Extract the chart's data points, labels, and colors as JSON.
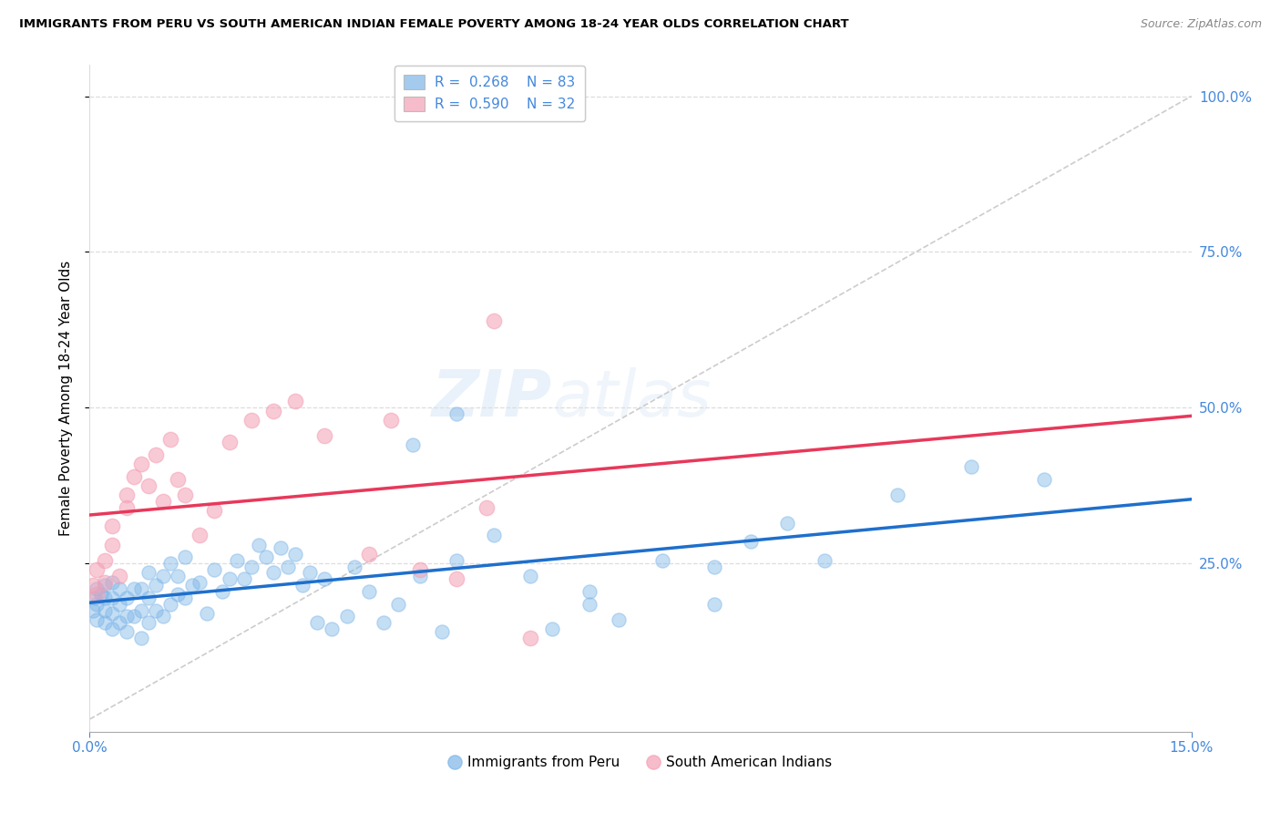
{
  "title": "IMMIGRANTS FROM PERU VS SOUTH AMERICAN INDIAN FEMALE POVERTY AMONG 18-24 YEAR OLDS CORRELATION CHART",
  "source": "Source: ZipAtlas.com",
  "ylabel_label": "Female Poverty Among 18-24 Year Olds",
  "xlim": [
    0.0,
    0.15
  ],
  "ylim": [
    -0.02,
    1.05
  ],
  "ytick_vals": [
    0.25,
    0.5,
    0.75,
    1.0
  ],
  "xtick_vals": [
    0.0,
    0.15
  ],
  "legend_r1": "R = 0.268",
  "legend_n1": "N = 83",
  "legend_r2": "R = 0.590",
  "legend_n2": "N = 32",
  "color_blue": "#7EB6E8",
  "color_pink": "#F4A0B5",
  "color_line_blue": "#1E6FCC",
  "color_line_pink": "#E8385A",
  "color_diag": "#CCCCCC",
  "color_tick": "#4488DD",
  "watermark": "ZIPatlas",
  "blue_x": [
    0.0004,
    0.0007,
    0.001,
    0.001,
    0.001,
    0.0015,
    0.002,
    0.002,
    0.002,
    0.002,
    0.003,
    0.003,
    0.003,
    0.003,
    0.004,
    0.004,
    0.004,
    0.005,
    0.005,
    0.005,
    0.006,
    0.006,
    0.007,
    0.007,
    0.007,
    0.008,
    0.008,
    0.008,
    0.009,
    0.009,
    0.01,
    0.01,
    0.011,
    0.011,
    0.012,
    0.012,
    0.013,
    0.013,
    0.014,
    0.015,
    0.016,
    0.017,
    0.018,
    0.019,
    0.02,
    0.021,
    0.022,
    0.023,
    0.024,
    0.025,
    0.026,
    0.027,
    0.028,
    0.029,
    0.03,
    0.031,
    0.032,
    0.033,
    0.035,
    0.036,
    0.038,
    0.04,
    0.042,
    0.045,
    0.048,
    0.05,
    0.055,
    0.06,
    0.063,
    0.068,
    0.072,
    0.078,
    0.085,
    0.09,
    0.095,
    0.1,
    0.11,
    0.12,
    0.13,
    0.044,
    0.05,
    0.068,
    0.085
  ],
  "blue_y": [
    0.175,
    0.195,
    0.16,
    0.185,
    0.21,
    0.2,
    0.155,
    0.175,
    0.195,
    0.215,
    0.145,
    0.17,
    0.195,
    0.22,
    0.155,
    0.185,
    0.21,
    0.14,
    0.165,
    0.195,
    0.165,
    0.21,
    0.13,
    0.175,
    0.21,
    0.155,
    0.195,
    0.235,
    0.175,
    0.215,
    0.165,
    0.23,
    0.185,
    0.25,
    0.2,
    0.23,
    0.195,
    0.26,
    0.215,
    0.22,
    0.17,
    0.24,
    0.205,
    0.225,
    0.255,
    0.225,
    0.245,
    0.28,
    0.26,
    0.235,
    0.275,
    0.245,
    0.265,
    0.215,
    0.235,
    0.155,
    0.225,
    0.145,
    0.165,
    0.245,
    0.205,
    0.155,
    0.185,
    0.23,
    0.14,
    0.255,
    0.295,
    0.23,
    0.145,
    0.185,
    0.16,
    0.255,
    0.245,
    0.285,
    0.315,
    0.255,
    0.36,
    0.405,
    0.385,
    0.44,
    0.49,
    0.205,
    0.185
  ],
  "pink_x": [
    0.0004,
    0.001,
    0.001,
    0.002,
    0.002,
    0.003,
    0.003,
    0.004,
    0.005,
    0.005,
    0.006,
    0.007,
    0.008,
    0.009,
    0.01,
    0.011,
    0.012,
    0.013,
    0.015,
    0.017,
    0.019,
    0.022,
    0.025,
    0.028,
    0.032,
    0.038,
    0.041,
    0.045,
    0.05,
    0.054,
    0.055,
    0.06
  ],
  "pink_y": [
    0.215,
    0.2,
    0.24,
    0.22,
    0.255,
    0.28,
    0.31,
    0.23,
    0.34,
    0.36,
    0.39,
    0.41,
    0.375,
    0.425,
    0.35,
    0.45,
    0.385,
    0.36,
    0.295,
    0.335,
    0.445,
    0.48,
    0.495,
    0.51,
    0.455,
    0.265,
    0.48,
    0.24,
    0.225,
    0.34,
    0.64,
    0.13
  ],
  "blue_scatter_size": 120,
  "pink_scatter_size": 140,
  "legend_fontsize": 11,
  "tick_fontsize": 11
}
